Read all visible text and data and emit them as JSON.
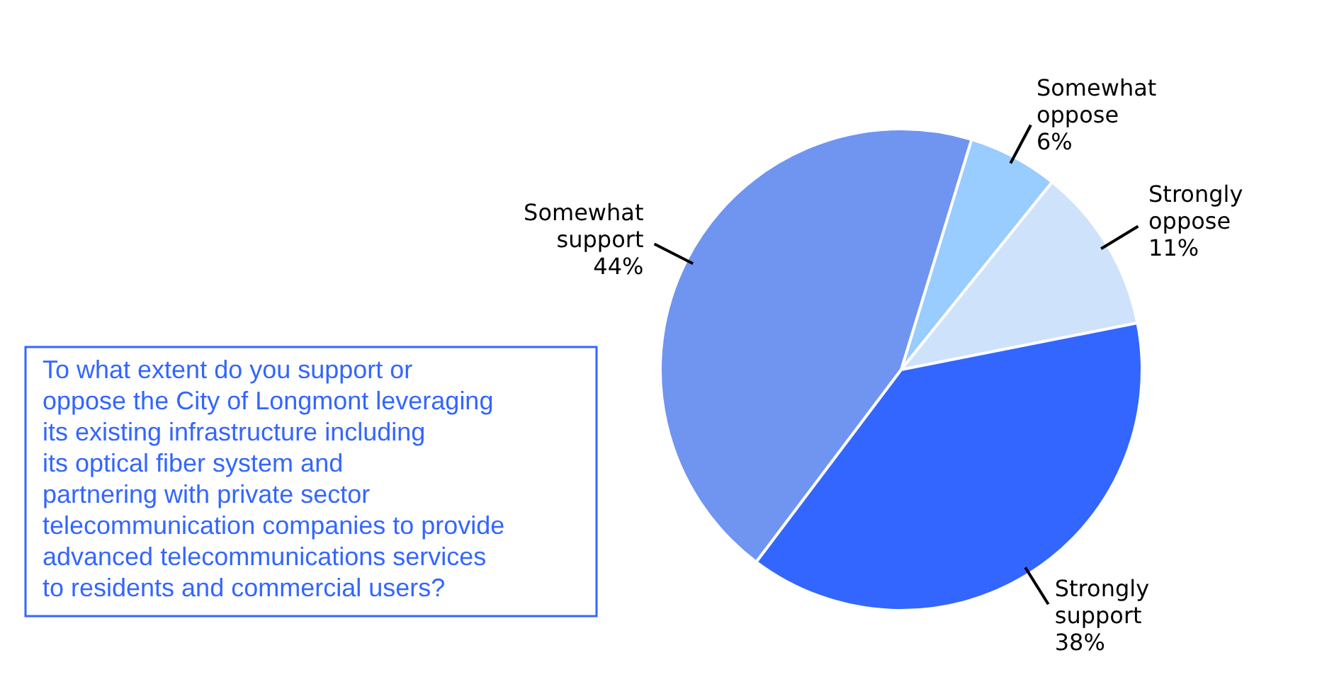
{
  "chart_data": {
    "type": "pie",
    "categories": [
      "Somewhat oppose",
      "Strongly oppose",
      "Strongly support",
      "Somewhat support"
    ],
    "values": [
      6,
      11,
      38,
      44
    ],
    "colors": [
      "#99ccff",
      "#cfe2fb",
      "#3366ff",
      "#6f95f0"
    ],
    "value_labels": [
      "6%",
      "11%",
      "38%",
      "44%"
    ],
    "annotations": [
      "To what extent do you support or oppose the City of Longmont leveraging its existing infrastructure including its optical fiber system and partnering with private sector telecommunication companies to provide advanced telecommunications services to residents and commercial users?"
    ]
  }
}
